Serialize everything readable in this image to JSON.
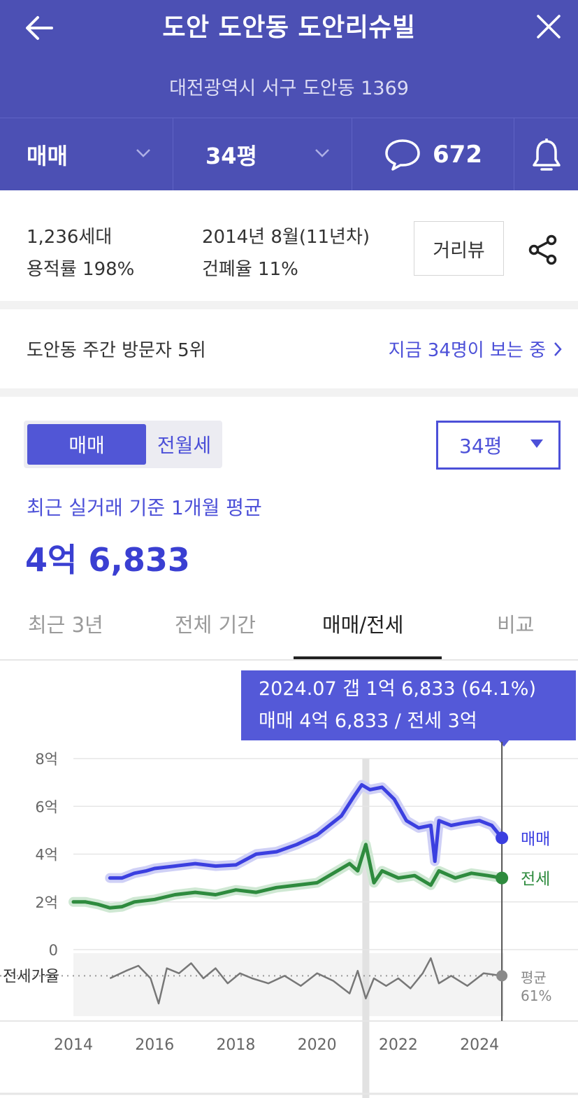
{
  "header": {
    "title": "도안 도안동 도안리슈빌",
    "address": "대전광역시 서구 도안동 1369",
    "deal_type": "매매",
    "size": "34평",
    "comment_count": "672",
    "icons": [
      "back-arrow-icon",
      "close-icon",
      "chevron-down-icon",
      "chat-bubble-icon",
      "bell-icon"
    ],
    "bg_color": "#4c50b4"
  },
  "complex_info": {
    "households": "1,236세대",
    "far": "용적률 198%",
    "built": "2014년 8월(11년차)",
    "bcr": "건폐율 11%",
    "street_view_label": "거리뷰",
    "share_icon": "share-icon"
  },
  "visitors": {
    "rank_text": "도안동 주간 방문자 5위",
    "viewing_now": "지금 34명이 보는 중"
  },
  "price_section": {
    "segment_active": "매매",
    "segment_inactive": "전월세",
    "size_select": "34평",
    "avg_label": "최근 실거래 기준 1개월 평균",
    "avg_price": "4억 6,833",
    "accent_color": "#4c50d8"
  },
  "tabs": [
    {
      "label": "최근 3년",
      "active": false
    },
    {
      "label": "전체 기간",
      "active": false
    },
    {
      "label": "매매/전세",
      "active": true
    },
    {
      "label": "비교",
      "active": false
    }
  ],
  "tooltip": {
    "line1": "2024.07  갭 1억 6,833 (64.1%)",
    "line2": "매매 4억 6,833 / 전세 3억"
  },
  "chart_data": {
    "type": "line",
    "y_ticks": [
      "8억",
      "6억",
      "4억",
      "2억",
      "0"
    ],
    "ylim": [
      0,
      8
    ],
    "x_ticks": [
      "2014",
      "2016",
      "2018",
      "2020",
      "2022",
      "2024"
    ],
    "xlim": [
      2014,
      2024.6
    ],
    "ratio_row_label": "전세가율",
    "series": [
      {
        "name": "매매",
        "color": "#3b3fe0",
        "x": [
          2014.9,
          2015.2,
          2015.5,
          2015.8,
          2016.0,
          2016.5,
          2017.0,
          2017.5,
          2018.0,
          2018.5,
          2019.0,
          2019.5,
          2020.0,
          2020.3,
          2020.6,
          2020.9,
          2021.1,
          2021.3,
          2021.6,
          2021.9,
          2022.2,
          2022.5,
          2022.8,
          2022.9,
          2023.0,
          2023.3,
          2023.6,
          2024.0,
          2024.3,
          2024.55
        ],
        "values": [
          3.0,
          3.0,
          3.2,
          3.3,
          3.4,
          3.5,
          3.6,
          3.5,
          3.55,
          4.0,
          4.1,
          4.4,
          4.8,
          5.2,
          5.6,
          6.4,
          6.9,
          6.7,
          6.8,
          6.3,
          5.4,
          5.1,
          5.2,
          3.7,
          5.4,
          5.2,
          5.3,
          5.4,
          5.2,
          4.68
        ]
      },
      {
        "name": "전세",
        "color": "#2e8b3e",
        "x": [
          2014.0,
          2014.3,
          2014.6,
          2014.9,
          2015.2,
          2015.5,
          2016.0,
          2016.5,
          2017.0,
          2017.5,
          2018.0,
          2018.5,
          2019.0,
          2019.5,
          2020.0,
          2020.4,
          2020.8,
          2021.0,
          2021.2,
          2021.4,
          2021.6,
          2022.0,
          2022.4,
          2022.8,
          2023.0,
          2023.4,
          2023.8,
          2024.2,
          2024.55
        ],
        "values": [
          2.0,
          2.0,
          1.9,
          1.75,
          1.8,
          2.0,
          2.1,
          2.3,
          2.4,
          2.3,
          2.5,
          2.4,
          2.6,
          2.7,
          2.8,
          3.2,
          3.6,
          3.3,
          4.4,
          2.8,
          3.3,
          3.0,
          3.1,
          2.7,
          3.3,
          3.0,
          3.2,
          3.1,
          3.0
        ]
      }
    ],
    "ratio_series": {
      "name": "평균",
      "color": "#777777",
      "average_label": "평균",
      "average_value": "61%",
      "x": [
        2014.9,
        2015.3,
        2015.6,
        2015.9,
        2016.1,
        2016.3,
        2016.6,
        2016.9,
        2017.2,
        2017.5,
        2017.8,
        2018.1,
        2018.4,
        2018.8,
        2019.2,
        2019.6,
        2020.0,
        2020.4,
        2020.8,
        2021.0,
        2021.2,
        2021.4,
        2021.7,
        2022.0,
        2022.3,
        2022.6,
        2022.8,
        2023.0,
        2023.3,
        2023.7,
        2024.1,
        2024.55
      ],
      "values": [
        60,
        63,
        65,
        60,
        50,
        64,
        62,
        66,
        60,
        64,
        58,
        62,
        60,
        58,
        61,
        57,
        62,
        59,
        54,
        63,
        52,
        60,
        57,
        60,
        56,
        62,
        68,
        58,
        61,
        57,
        62,
        61
      ]
    },
    "markers": [
      {
        "label": "매매",
        "color": "#3b3fe0"
      },
      {
        "label": "전세",
        "color": "#2e8b3e"
      }
    ],
    "cursor_x": 2024.55,
    "highlight_x": 2021.2,
    "grid": true
  }
}
